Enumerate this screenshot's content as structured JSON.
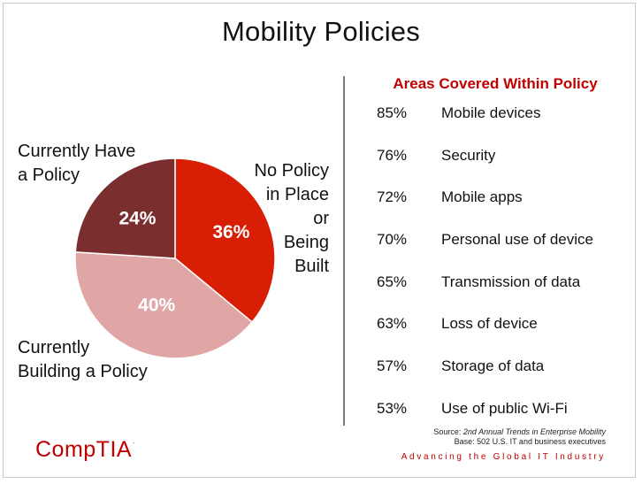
{
  "title": "Mobility Policies",
  "chart_data": [
    {
      "type": "pie",
      "title": "",
      "slices": [
        {
          "label": "No Policy in Place or Being Built",
          "value": 36,
          "pct_label": "36%",
          "color": "#d81e05"
        },
        {
          "label": "Currently Building a Policy",
          "value": 40,
          "pct_label": "40%",
          "color": "#e0a6a6"
        },
        {
          "label": "Currently Have a Policy",
          "value": 24,
          "pct_label": "24%",
          "color": "#7a2e2e"
        }
      ],
      "callouts": {
        "have_line1": "Currently Have",
        "have_line2": "a Policy",
        "building_line1": "Currently",
        "building_line2": "Building a Policy",
        "nopolicy_line1": "No Policy",
        "nopolicy_line2": "in Place",
        "nopolicy_line3": "or",
        "nopolicy_line4": "Being",
        "nopolicy_line5": "Built"
      }
    },
    {
      "type": "table",
      "title": "Areas Covered Within Policy",
      "rows": [
        {
          "pct": "85%",
          "value": 85,
          "label": "Mobile devices"
        },
        {
          "pct": "76%",
          "value": 76,
          "label": "Security"
        },
        {
          "pct": "72%",
          "value": 72,
          "label": "Mobile apps"
        },
        {
          "pct": "70%",
          "value": 70,
          "label": "Personal use of device"
        },
        {
          "pct": "65%",
          "value": 65,
          "label": "Transmission of data"
        },
        {
          "pct": "63%",
          "value": 63,
          "label": "Loss of device"
        },
        {
          "pct": "57%",
          "value": 57,
          "label": "Storage of data"
        },
        {
          "pct": "53%",
          "value": 53,
          "label": "Use of public Wi-Fi"
        }
      ]
    }
  ],
  "source": {
    "prefix": "Source: ",
    "study": "2nd Annual Trends in Enterprise Mobility",
    "base": "Base: 502 U.S. IT and business executives"
  },
  "tagline": "Advancing the Global IT Industry",
  "logo": {
    "text": "CompTIA",
    "tm": "."
  }
}
